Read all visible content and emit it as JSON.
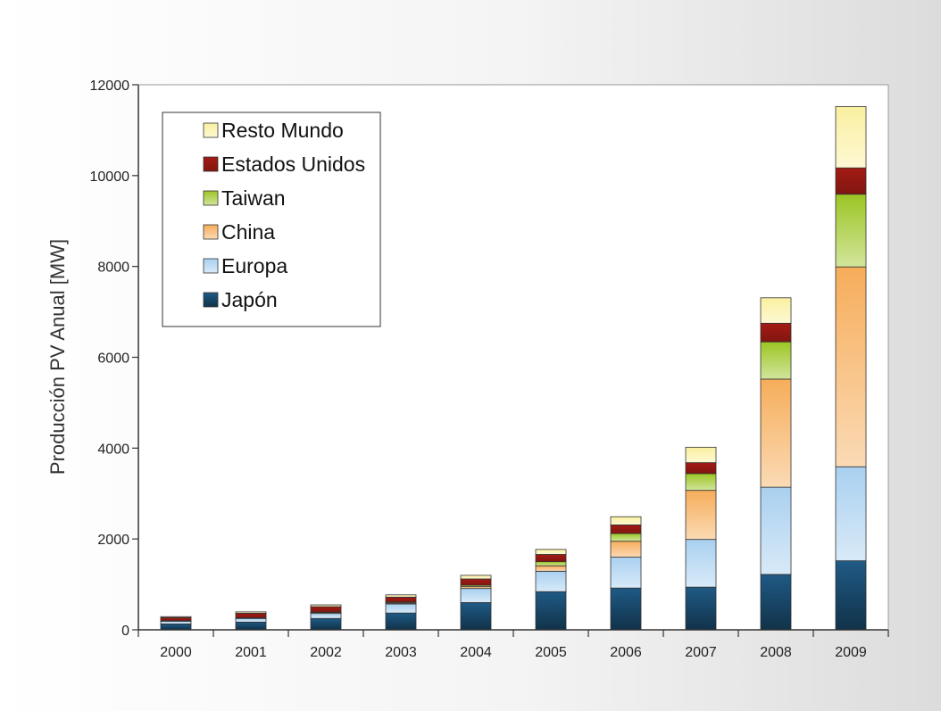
{
  "chart_data": {
    "type": "bar",
    "stacked": true,
    "categories": [
      "2000",
      "2001",
      "2002",
      "2003",
      "2004",
      "2005",
      "2006",
      "2007",
      "2008",
      "2009"
    ],
    "ylabel": "Producción PV Anual [MW]",
    "ylim": [
      0,
      12000
    ],
    "yticks": [
      0,
      2000,
      4000,
      6000,
      8000,
      10000,
      12000
    ],
    "legend_position": "top-left",
    "series": [
      {
        "name": "Japón",
        "color": "#1f5a85",
        "values": [
          130,
          170,
          250,
          370,
          600,
          840,
          920,
          940,
          1220,
          1520
        ]
      },
      {
        "name": "Europa",
        "color": "#a9d0f0",
        "values": [
          60,
          80,
          110,
          200,
          310,
          450,
          680,
          1050,
          1920,
          2070
        ]
      },
      {
        "name": "China",
        "color": "#f6ad5a",
        "values": [
          10,
          10,
          20,
          20,
          40,
          120,
          350,
          1080,
          2380,
          4400
        ]
      },
      {
        "name": "Taiwan",
        "color": "#9cc524",
        "values": [
          0,
          5,
          10,
          20,
          30,
          90,
          170,
          370,
          820,
          1600
        ]
      },
      {
        "name": "Estados Unidos",
        "color": "#a31b14",
        "values": [
          70,
          100,
          120,
          110,
          140,
          160,
          190,
          240,
          410,
          580
        ]
      },
      {
        "name": "Resto Mundo",
        "color": "#faf0a0",
        "values": [
          20,
          30,
          40,
          50,
          80,
          110,
          180,
          340,
          560,
          1350
        ]
      }
    ]
  }
}
